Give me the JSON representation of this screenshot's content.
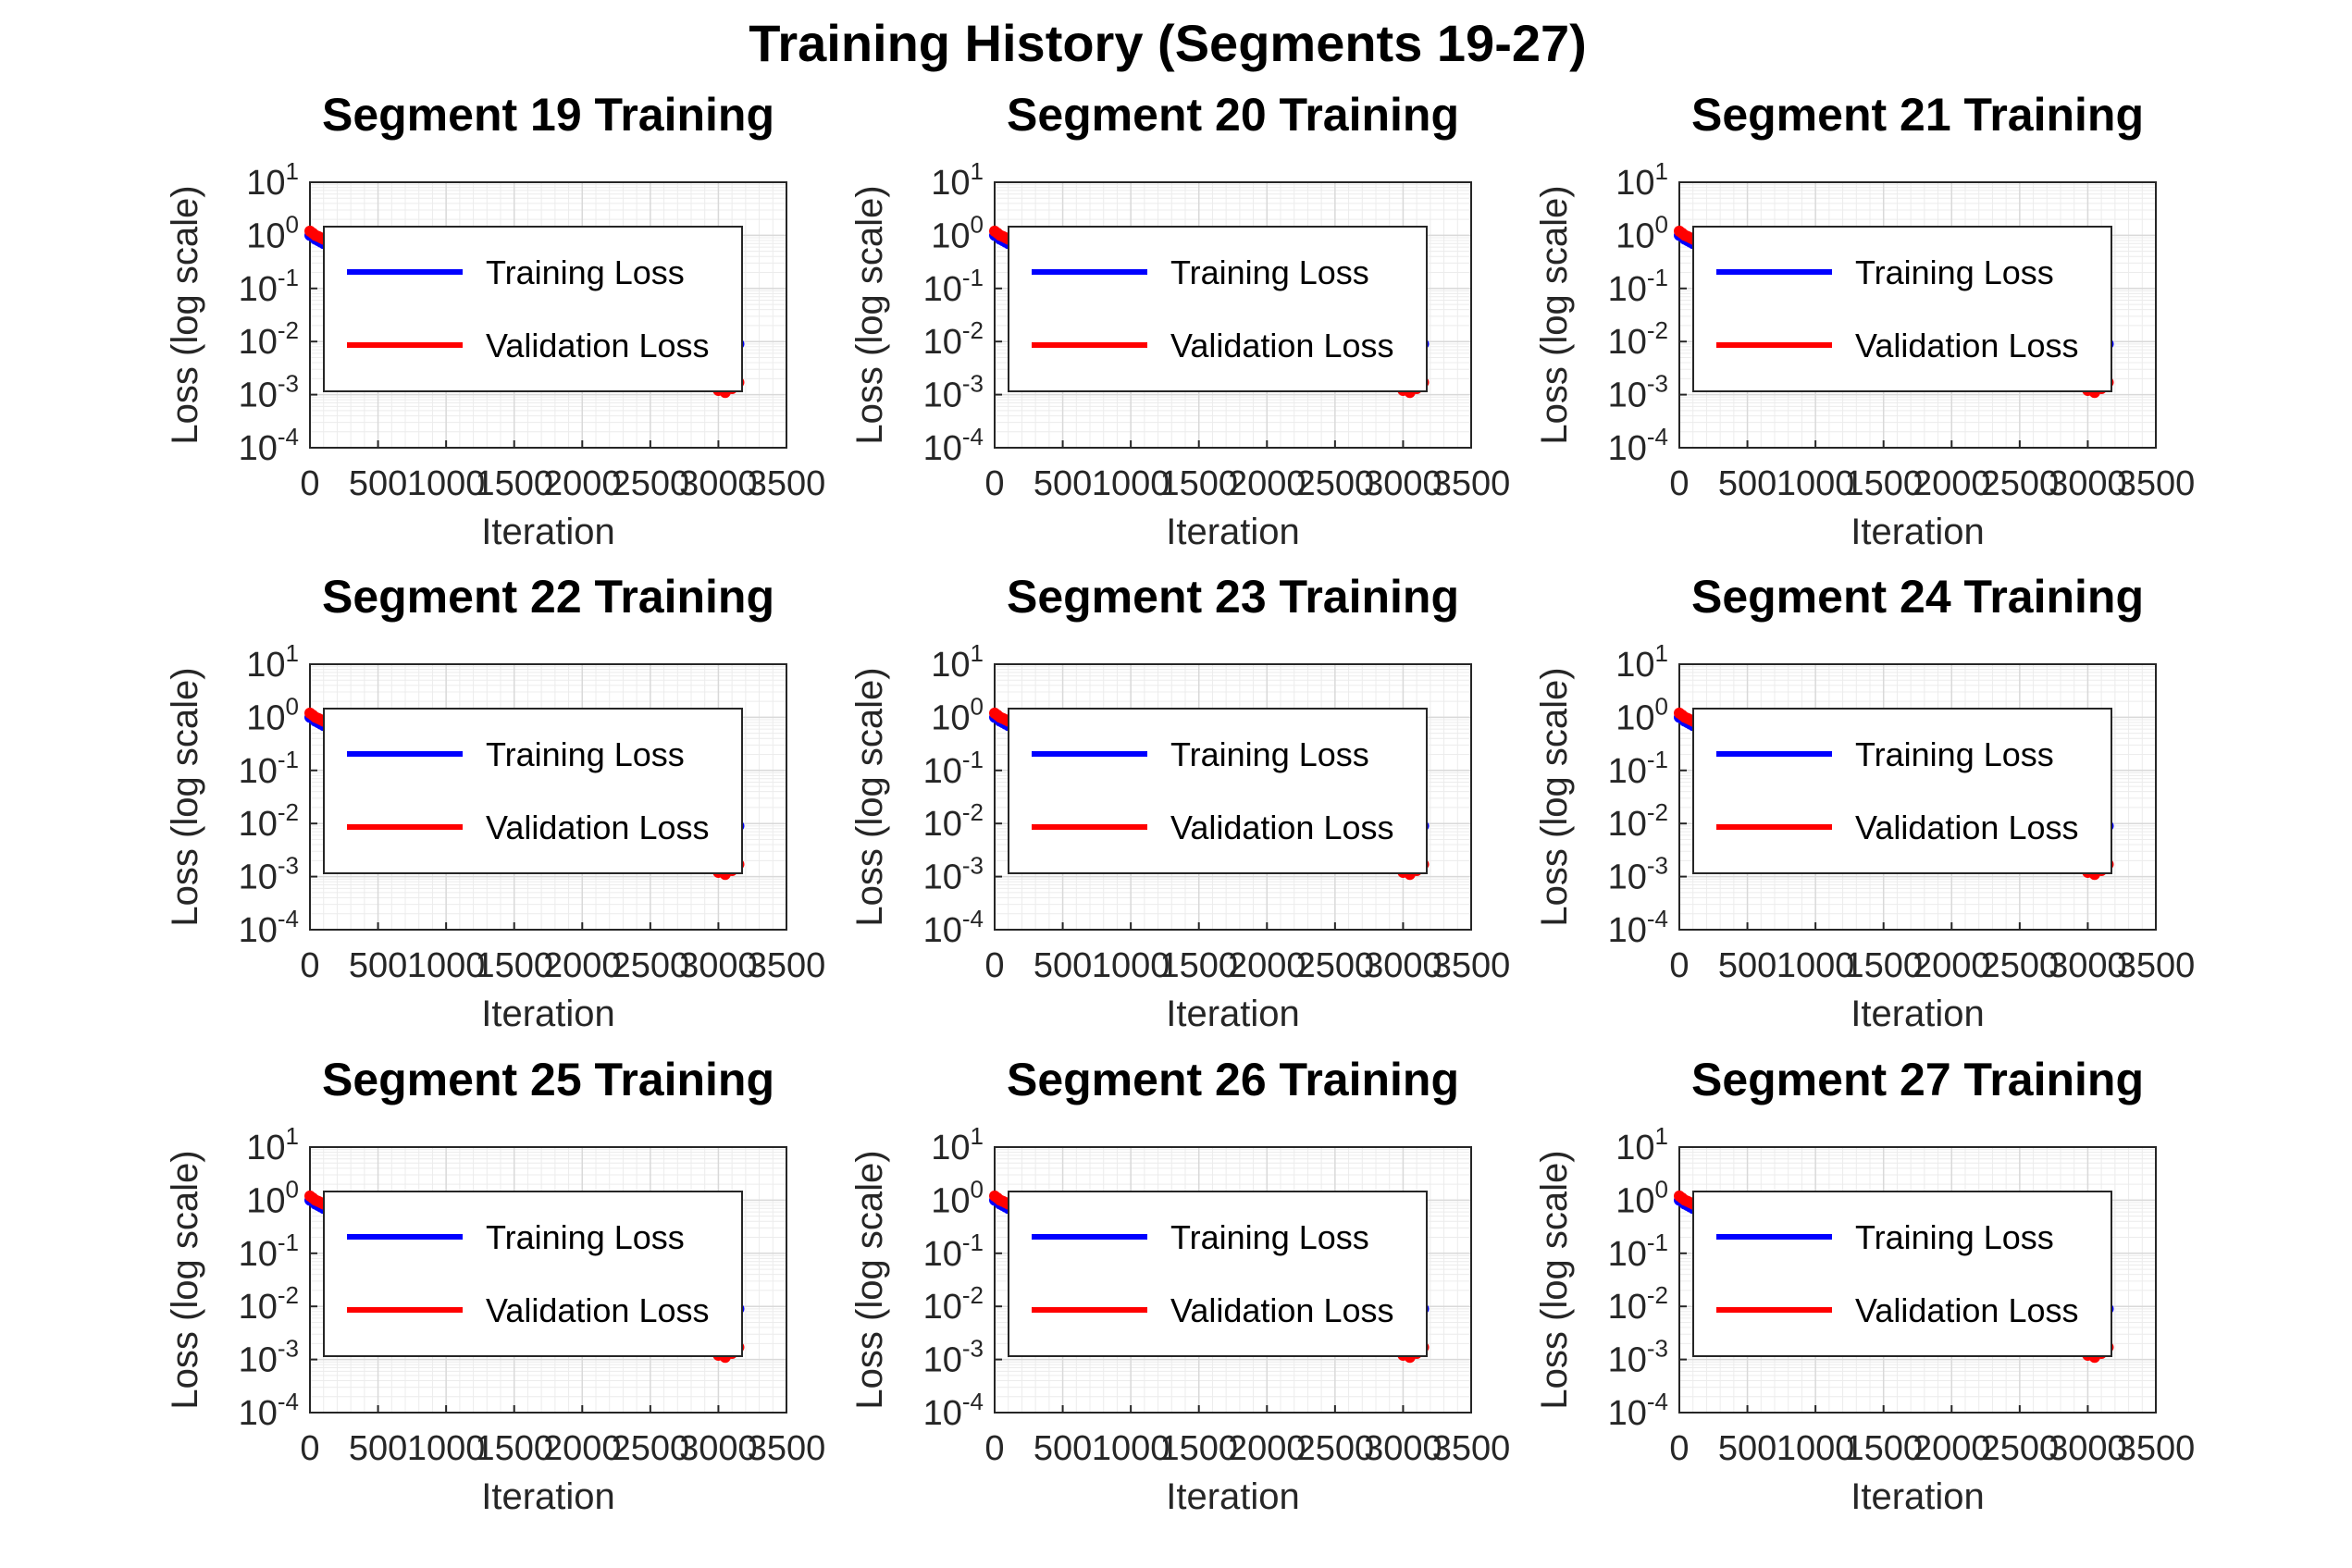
{
  "figure": {
    "title": "Training History (Segments 19-27)"
  },
  "colors": {
    "training": "#0000ff",
    "validation": "#ff0000",
    "grid": "#d9d9d9",
    "axis": "#262626"
  },
  "chart_data": [
    {
      "type": "line",
      "title": "Segment 19 Training",
      "xlabel": "Iteration",
      "ylabel": "Loss (log scale)",
      "xlim": [
        0,
        3500
      ],
      "xticks": [
        0,
        500,
        1000,
        1500,
        2000,
        2500,
        3000,
        3500
      ],
      "yscale": "log",
      "ylim": [
        0.0001,
        10
      ],
      "yticks": [
        "-4",
        "-3",
        "-2",
        "-1",
        "0",
        "1"
      ],
      "grid": true,
      "legend": "upper-left",
      "series": [
        {
          "name": "Training Loss",
          "color": "#0000ff",
          "x": [
            0,
            20,
            40,
            60,
            80,
            100,
            3150
          ],
          "y": [
            1.0,
            0.95,
            0.85,
            0.8,
            0.75,
            0.7,
            0.009
          ]
        },
        {
          "name": "Validation Loss",
          "color": "#ff0000",
          "x": [
            0,
            20,
            40,
            60,
            80,
            100,
            3000,
            3050,
            3100,
            3150
          ],
          "y": [
            1.2,
            1.1,
            1.0,
            0.95,
            0.9,
            0.85,
            0.0012,
            0.0011,
            0.0013,
            0.0017
          ]
        }
      ]
    },
    {
      "type": "line",
      "title": "Segment 20 Training",
      "xlabel": "Iteration",
      "ylabel": "Loss (log scale)",
      "xlim": [
        0,
        3500
      ],
      "xticks": [
        0,
        500,
        1000,
        1500,
        2000,
        2500,
        3000,
        3500
      ],
      "yscale": "log",
      "ylim": [
        0.0001,
        10
      ],
      "yticks": [
        "-4",
        "-3",
        "-2",
        "-1",
        "0",
        "1"
      ],
      "grid": true,
      "legend": "upper-left",
      "series": [
        {
          "name": "Training Loss",
          "color": "#0000ff",
          "x": [
            0,
            20,
            40,
            60,
            80,
            100,
            3150
          ],
          "y": [
            1.0,
            0.95,
            0.85,
            0.8,
            0.75,
            0.7,
            0.009
          ]
        },
        {
          "name": "Validation Loss",
          "color": "#ff0000",
          "x": [
            0,
            20,
            40,
            60,
            80,
            100,
            3000,
            3050,
            3100,
            3150
          ],
          "y": [
            1.2,
            1.1,
            1.0,
            0.95,
            0.9,
            0.85,
            0.0012,
            0.0011,
            0.0013,
            0.0017
          ]
        }
      ]
    },
    {
      "type": "line",
      "title": "Segment 21 Training",
      "xlabel": "Iteration",
      "ylabel": "Loss (log scale)",
      "xlim": [
        0,
        3500
      ],
      "xticks": [
        0,
        500,
        1000,
        1500,
        2000,
        2500,
        3000,
        3500
      ],
      "yscale": "log",
      "ylim": [
        0.0001,
        10
      ],
      "yticks": [
        "-4",
        "-3",
        "-2",
        "-1",
        "0",
        "1"
      ],
      "grid": true,
      "legend": "upper-left",
      "series": [
        {
          "name": "Training Loss",
          "color": "#0000ff",
          "x": [
            0,
            20,
            40,
            60,
            80,
            100,
            3150
          ],
          "y": [
            1.0,
            0.95,
            0.85,
            0.8,
            0.75,
            0.7,
            0.009
          ]
        },
        {
          "name": "Validation Loss",
          "color": "#ff0000",
          "x": [
            0,
            20,
            40,
            60,
            80,
            100,
            3000,
            3050,
            3100,
            3150
          ],
          "y": [
            1.2,
            1.1,
            1.0,
            0.95,
            0.9,
            0.85,
            0.0012,
            0.0011,
            0.0013,
            0.0017
          ]
        }
      ]
    },
    {
      "type": "line",
      "title": "Segment 22 Training",
      "xlabel": "Iteration",
      "ylabel": "Loss (log scale)",
      "xlim": [
        0,
        3500
      ],
      "xticks": [
        0,
        500,
        1000,
        1500,
        2000,
        2500,
        3000,
        3500
      ],
      "yscale": "log",
      "ylim": [
        0.0001,
        10
      ],
      "yticks": [
        "-4",
        "-3",
        "-2",
        "-1",
        "0",
        "1"
      ],
      "grid": true,
      "legend": "upper-left",
      "series": [
        {
          "name": "Training Loss",
          "color": "#0000ff",
          "x": [
            0,
            20,
            40,
            60,
            80,
            100,
            3150
          ],
          "y": [
            1.0,
            0.95,
            0.85,
            0.8,
            0.75,
            0.7,
            0.009
          ]
        },
        {
          "name": "Validation Loss",
          "color": "#ff0000",
          "x": [
            0,
            20,
            40,
            60,
            80,
            100,
            3000,
            3050,
            3100,
            3150
          ],
          "y": [
            1.2,
            1.1,
            1.0,
            0.95,
            0.9,
            0.85,
            0.0012,
            0.0011,
            0.0013,
            0.0017
          ]
        }
      ]
    },
    {
      "type": "line",
      "title": "Segment 23 Training",
      "xlabel": "Iteration",
      "ylabel": "Loss (log scale)",
      "xlim": [
        0,
        3500
      ],
      "xticks": [
        0,
        500,
        1000,
        1500,
        2000,
        2500,
        3000,
        3500
      ],
      "yscale": "log",
      "ylim": [
        0.0001,
        10
      ],
      "yticks": [
        "-4",
        "-3",
        "-2",
        "-1",
        "0",
        "1"
      ],
      "grid": true,
      "legend": "upper-left",
      "series": [
        {
          "name": "Training Loss",
          "color": "#0000ff",
          "x": [
            0,
            20,
            40,
            60,
            80,
            100,
            3150
          ],
          "y": [
            1.0,
            0.95,
            0.85,
            0.8,
            0.75,
            0.7,
            0.009
          ]
        },
        {
          "name": "Validation Loss",
          "color": "#ff0000",
          "x": [
            0,
            20,
            40,
            60,
            80,
            100,
            3000,
            3050,
            3100,
            3150
          ],
          "y": [
            1.2,
            1.1,
            1.0,
            0.95,
            0.9,
            0.85,
            0.0012,
            0.0011,
            0.0013,
            0.0017
          ]
        }
      ]
    },
    {
      "type": "line",
      "title": "Segment 24 Training",
      "xlabel": "Iteration",
      "ylabel": "Loss (log scale)",
      "xlim": [
        0,
        3500
      ],
      "xticks": [
        0,
        500,
        1000,
        1500,
        2000,
        2500,
        3000,
        3500
      ],
      "yscale": "log",
      "ylim": [
        0.0001,
        10
      ],
      "yticks": [
        "-4",
        "-3",
        "-2",
        "-1",
        "0",
        "1"
      ],
      "grid": true,
      "legend": "upper-left",
      "series": [
        {
          "name": "Training Loss",
          "color": "#0000ff",
          "x": [
            0,
            20,
            40,
            60,
            80,
            100,
            3150
          ],
          "y": [
            1.0,
            0.95,
            0.85,
            0.8,
            0.75,
            0.7,
            0.009
          ]
        },
        {
          "name": "Validation Loss",
          "color": "#ff0000",
          "x": [
            0,
            20,
            40,
            60,
            80,
            100,
            3000,
            3050,
            3100,
            3150
          ],
          "y": [
            1.2,
            1.1,
            1.0,
            0.95,
            0.9,
            0.85,
            0.0012,
            0.0011,
            0.0013,
            0.0017
          ]
        }
      ]
    },
    {
      "type": "line",
      "title": "Segment 25 Training",
      "xlabel": "Iteration",
      "ylabel": "Loss (log scale)",
      "xlim": [
        0,
        3500
      ],
      "xticks": [
        0,
        500,
        1000,
        1500,
        2000,
        2500,
        3000,
        3500
      ],
      "yscale": "log",
      "ylim": [
        0.0001,
        10
      ],
      "yticks": [
        "-4",
        "-3",
        "-2",
        "-1",
        "0",
        "1"
      ],
      "grid": true,
      "legend": "upper-left",
      "series": [
        {
          "name": "Training Loss",
          "color": "#0000ff",
          "x": [
            0,
            20,
            40,
            60,
            80,
            100,
            3150
          ],
          "y": [
            1.0,
            0.95,
            0.85,
            0.8,
            0.75,
            0.7,
            0.009
          ]
        },
        {
          "name": "Validation Loss",
          "color": "#ff0000",
          "x": [
            0,
            20,
            40,
            60,
            80,
            100,
            3000,
            3050,
            3100,
            3150
          ],
          "y": [
            1.2,
            1.1,
            1.0,
            0.95,
            0.9,
            0.85,
            0.0012,
            0.0011,
            0.0013,
            0.0017
          ]
        }
      ]
    },
    {
      "type": "line",
      "title": "Segment 26 Training",
      "xlabel": "Iteration",
      "ylabel": "Loss (log scale)",
      "xlim": [
        0,
        3500
      ],
      "xticks": [
        0,
        500,
        1000,
        1500,
        2000,
        2500,
        3000,
        3500
      ],
      "yscale": "log",
      "ylim": [
        0.0001,
        10
      ],
      "yticks": [
        "-4",
        "-3",
        "-2",
        "-1",
        "0",
        "1"
      ],
      "grid": true,
      "legend": "upper-left",
      "series": [
        {
          "name": "Training Loss",
          "color": "#0000ff",
          "x": [
            0,
            20,
            40,
            60,
            80,
            100,
            3150
          ],
          "y": [
            1.0,
            0.95,
            0.85,
            0.8,
            0.75,
            0.7,
            0.009
          ]
        },
        {
          "name": "Validation Loss",
          "color": "#ff0000",
          "x": [
            0,
            20,
            40,
            60,
            80,
            100,
            3000,
            3050,
            3100,
            3150
          ],
          "y": [
            1.2,
            1.1,
            1.0,
            0.95,
            0.9,
            0.85,
            0.0012,
            0.0011,
            0.0013,
            0.0017
          ]
        }
      ]
    },
    {
      "type": "line",
      "title": "Segment 27 Training",
      "xlabel": "Iteration",
      "ylabel": "Loss (log scale)",
      "xlim": [
        0,
        3500
      ],
      "xticks": [
        0,
        500,
        1000,
        1500,
        2000,
        2500,
        3000,
        3500
      ],
      "yscale": "log",
      "ylim": [
        0.0001,
        10
      ],
      "yticks": [
        "-4",
        "-3",
        "-2",
        "-1",
        "0",
        "1"
      ],
      "grid": true,
      "legend": "upper-left",
      "series": [
        {
          "name": "Training Loss",
          "color": "#0000ff",
          "x": [
            0,
            20,
            40,
            60,
            80,
            100,
            3150
          ],
          "y": [
            1.0,
            0.95,
            0.85,
            0.8,
            0.75,
            0.7,
            0.009
          ]
        },
        {
          "name": "Validation Loss",
          "color": "#ff0000",
          "x": [
            0,
            20,
            40,
            60,
            80,
            100,
            3000,
            3050,
            3100,
            3150
          ],
          "y": [
            1.2,
            1.1,
            1.0,
            0.95,
            0.9,
            0.85,
            0.0012,
            0.0011,
            0.0013,
            0.0017
          ]
        }
      ]
    }
  ]
}
